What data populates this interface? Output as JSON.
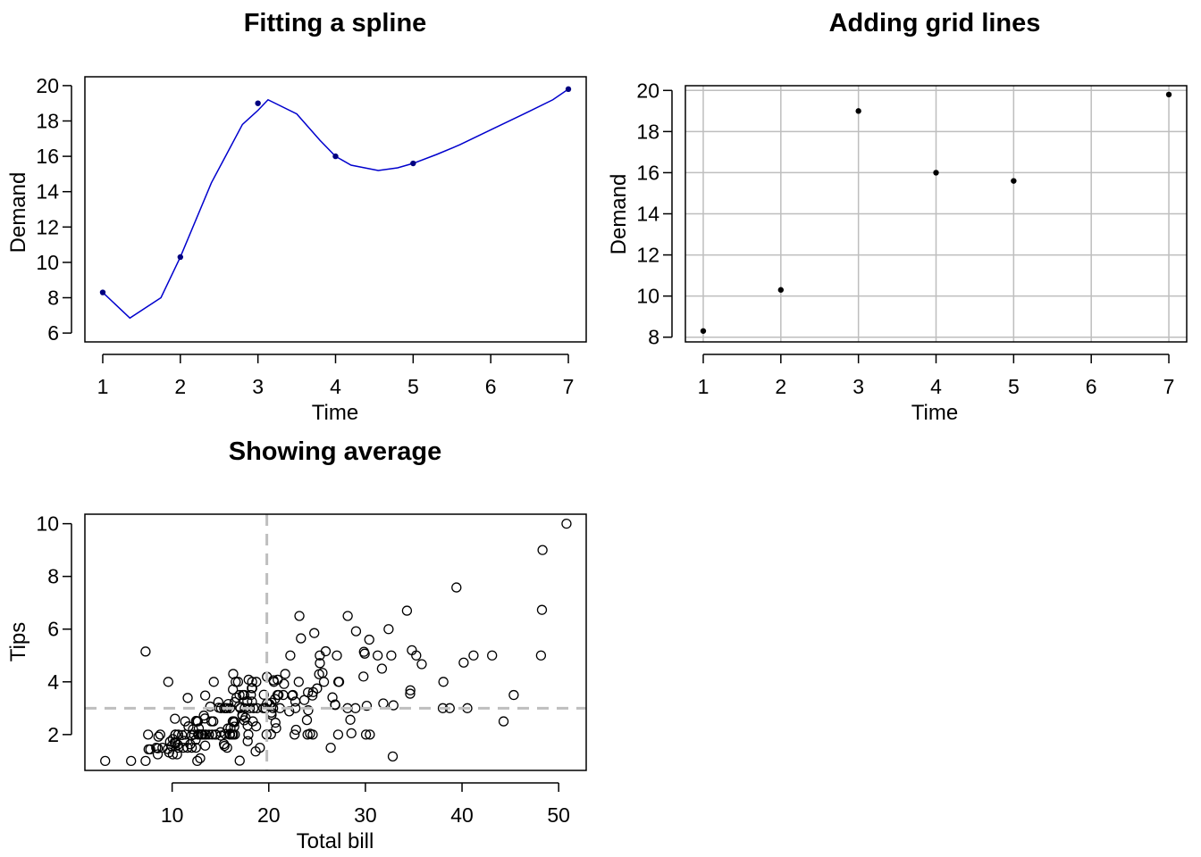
{
  "chart_data": [
    {
      "type": "line",
      "title": "Fitting a spline",
      "xlabel": "Time",
      "ylabel": "Demand",
      "xlim": [
        0.77,
        7.23
      ],
      "ylim": [
        5.5,
        20.5
      ],
      "xticks": [
        1,
        2,
        3,
        4,
        5,
        6,
        7
      ],
      "yticks": [
        6,
        8,
        10,
        12,
        14,
        16,
        18,
        20
      ],
      "grid": false,
      "colors": {
        "spline": "#0000cd",
        "points": "#000080"
      },
      "series": [
        {
          "kind": "points",
          "x": [
            1,
            2,
            3,
            4,
            5,
            7
          ],
          "y": [
            8.3,
            10.3,
            19.0,
            16.0,
            15.6,
            19.8
          ]
        },
        {
          "kind": "spline",
          "x": [
            1,
            1.35,
            1.75,
            2.0,
            2.4,
            2.8,
            3.0,
            3.13,
            3.5,
            3.8,
            4.0,
            4.2,
            4.55,
            4.8,
            5.0,
            5.3,
            5.6,
            6.0,
            6.5,
            6.8,
            7.0
          ],
          "y": [
            8.3,
            6.85,
            8.0,
            10.3,
            14.5,
            17.8,
            18.6,
            19.2,
            18.4,
            16.9,
            16.0,
            15.5,
            15.2,
            15.35,
            15.6,
            16.1,
            16.65,
            17.5,
            18.55,
            19.2,
            19.8
          ]
        }
      ]
    },
    {
      "type": "scatter",
      "title": "Adding grid lines",
      "xlabel": "Time",
      "ylabel": "Demand",
      "xlim": [
        0.77,
        7.23
      ],
      "ylim": [
        7.77,
        20.23
      ],
      "xticks": [
        1,
        2,
        3,
        4,
        5,
        6,
        7
      ],
      "yticks": [
        8,
        10,
        12,
        14,
        16,
        18,
        20
      ],
      "grid": true,
      "colors": {
        "grid": "#bebebe",
        "points": "#000000"
      },
      "series": [
        {
          "kind": "points",
          "x": [
            1,
            2,
            3,
            4,
            5,
            7
          ],
          "y": [
            8.3,
            10.3,
            19.0,
            16.0,
            15.6,
            19.8
          ]
        }
      ]
    },
    {
      "type": "scatter",
      "title": "Showing average",
      "xlabel": "Total bill",
      "ylabel": "Tips",
      "xlim": [
        0.97,
        52.85
      ],
      "ylim": [
        0.64,
        10.36
      ],
      "xticks": [
        10,
        20,
        30,
        40,
        50
      ],
      "yticks": [
        2,
        4,
        6,
        8,
        10
      ],
      "grid": false,
      "reference_lines": {
        "mean_x": 19.8,
        "mean_y": 3.0
      },
      "colors": {
        "reference": "#bebebe",
        "points": "#000000"
      },
      "points": [
        [
          3.07,
          1.0
        ],
        [
          5.75,
          1.0
        ],
        [
          7.25,
          1.0
        ],
        [
          7.25,
          5.15
        ],
        [
          7.51,
          2.0
        ],
        [
          7.56,
          1.44
        ],
        [
          7.74,
          1.44
        ],
        [
          8.35,
          1.5
        ],
        [
          8.51,
          1.25
        ],
        [
          8.52,
          1.48
        ],
        [
          8.58,
          1.92
        ],
        [
          8.77,
          2.0
        ],
        [
          9.0,
          1.5
        ],
        [
          9.55,
          1.45
        ],
        [
          9.6,
          4.0
        ],
        [
          9.68,
          1.32
        ],
        [
          9.78,
          1.73
        ],
        [
          9.94,
          1.56
        ],
        [
          10.07,
          1.25
        ],
        [
          10.07,
          1.83
        ],
        [
          10.27,
          1.71
        ],
        [
          10.29,
          2.6
        ],
        [
          10.33,
          1.67
        ],
        [
          10.33,
          2.0
        ],
        [
          10.34,
          1.66
        ],
        [
          10.34,
          2.0
        ],
        [
          10.51,
          1.25
        ],
        [
          10.59,
          1.61
        ],
        [
          10.63,
          2.0
        ],
        [
          10.65,
          1.5
        ],
        [
          11.02,
          1.98
        ],
        [
          11.17,
          1.5
        ],
        [
          11.24,
          1.76
        ],
        [
          11.35,
          2.5
        ],
        [
          11.38,
          2.0
        ],
        [
          11.59,
          1.5
        ],
        [
          11.61,
          3.39
        ],
        [
          11.69,
          2.31
        ],
        [
          11.87,
          1.63
        ],
        [
          12.02,
          1.97
        ],
        [
          12.03,
          1.5
        ],
        [
          12.16,
          2.2
        ],
        [
          12.26,
          2.0
        ],
        [
          12.43,
          1.8
        ],
        [
          12.46,
          1.5
        ],
        [
          12.48,
          2.52
        ],
        [
          12.54,
          2.5
        ],
        [
          12.6,
          1.0
        ],
        [
          12.66,
          2.5
        ],
        [
          12.69,
          2.0
        ],
        [
          12.74,
          2.01
        ],
        [
          12.76,
          2.23
        ],
        [
          12.9,
          1.1
        ],
        [
          13.0,
          2.0
        ],
        [
          13.03,
          2.0
        ],
        [
          13.13,
          2.0
        ],
        [
          13.16,
          2.0
        ],
        [
          13.28,
          2.72
        ],
        [
          13.37,
          2.0
        ],
        [
          13.39,
          2.61
        ],
        [
          13.42,
          1.58
        ],
        [
          13.42,
          3.48
        ],
        [
          13.51,
          2.0
        ],
        [
          13.81,
          2.0
        ],
        [
          13.94,
          3.06
        ],
        [
          14.07,
          2.5
        ],
        [
          14.15,
          2.0
        ],
        [
          14.26,
          2.5
        ],
        [
          14.31,
          4.0
        ],
        [
          14.48,
          2.0
        ],
        [
          14.52,
          2.0
        ],
        [
          14.78,
          3.23
        ],
        [
          14.83,
          3.02
        ],
        [
          15.01,
          2.09
        ],
        [
          15.04,
          1.96
        ],
        [
          15.06,
          3.0
        ],
        [
          15.36,
          1.64
        ],
        [
          15.38,
          3.0
        ],
        [
          15.42,
          1.57
        ],
        [
          15.48,
          2.02
        ],
        [
          15.53,
          3.0
        ],
        [
          15.69,
          1.5
        ],
        [
          15.69,
          3.0
        ],
        [
          15.77,
          2.23
        ],
        [
          15.81,
          3.16
        ],
        [
          15.95,
          2.0
        ],
        [
          15.98,
          2.03
        ],
        [
          15.98,
          3.0
        ],
        [
          16.0,
          2.0
        ],
        [
          16.04,
          2.24
        ],
        [
          16.21,
          2.0
        ],
        [
          16.27,
          2.5
        ],
        [
          16.29,
          3.71
        ],
        [
          16.31,
          2.0
        ],
        [
          16.32,
          4.3
        ],
        [
          16.4,
          2.5
        ],
        [
          16.43,
          2.3
        ],
        [
          16.45,
          2.47
        ],
        [
          16.47,
          3.23
        ],
        [
          16.49,
          2.0
        ],
        [
          16.58,
          4.0
        ],
        [
          16.66,
          3.4
        ],
        [
          16.82,
          4.0
        ],
        [
          16.93,
          3.07
        ],
        [
          16.97,
          3.5
        ],
        [
          16.99,
          1.01
        ],
        [
          17.07,
          3.0
        ],
        [
          17.26,
          2.74
        ],
        [
          17.29,
          2.71
        ],
        [
          17.31,
          3.5
        ],
        [
          17.46,
          2.54
        ],
        [
          17.47,
          3.5
        ],
        [
          17.51,
          3.0
        ],
        [
          17.59,
          2.64
        ],
        [
          17.78,
          3.27
        ],
        [
          17.81,
          2.34
        ],
        [
          17.82,
          1.75
        ],
        [
          17.89,
          2.0
        ],
        [
          17.92,
          4.08
        ],
        [
          18.04,
          3.0
        ],
        [
          18.15,
          3.5
        ],
        [
          18.24,
          3.76
        ],
        [
          18.26,
          3.25
        ],
        [
          18.28,
          4.0
        ],
        [
          18.29,
          3.76
        ],
        [
          18.35,
          2.5
        ],
        [
          18.43,
          3.0
        ],
        [
          18.64,
          1.36
        ],
        [
          18.69,
          2.31
        ],
        [
          18.71,
          4.0
        ],
        [
          18.78,
          3.0
        ],
        [
          19.08,
          1.5
        ],
        [
          19.44,
          3.0
        ],
        [
          19.49,
          3.51
        ],
        [
          19.65,
          3.0
        ],
        [
          19.77,
          2.0
        ],
        [
          19.81,
          4.19
        ],
        [
          19.82,
          3.18
        ],
        [
          20.08,
          3.15
        ],
        [
          20.23,
          2.01
        ],
        [
          20.27,
          2.83
        ],
        [
          20.29,
          2.75
        ],
        [
          20.29,
          3.21
        ],
        [
          20.45,
          3.0
        ],
        [
          20.49,
          4.06
        ],
        [
          20.53,
          4.0
        ],
        [
          20.65,
          3.35
        ],
        [
          20.69,
          2.45
        ],
        [
          20.76,
          2.24
        ],
        [
          20.9,
          3.5
        ],
        [
          20.92,
          4.08
        ],
        [
          21.01,
          3.5
        ],
        [
          21.16,
          3.0
        ],
        [
          21.5,
          3.5
        ],
        [
          21.58,
          3.92
        ],
        [
          21.7,
          4.3
        ],
        [
          22.12,
          2.88
        ],
        [
          22.23,
          5.0
        ],
        [
          22.42,
          3.48
        ],
        [
          22.49,
          3.5
        ],
        [
          22.67,
          2.0
        ],
        [
          22.75,
          3.25
        ],
        [
          22.76,
          3.0
        ],
        [
          22.82,
          2.18
        ],
        [
          23.1,
          4.0
        ],
        [
          23.17,
          6.5
        ],
        [
          23.33,
          5.65
        ],
        [
          23.68,
          3.31
        ],
        [
          23.95,
          2.55
        ],
        [
          24.01,
          2.0
        ],
        [
          24.06,
          3.6
        ],
        [
          24.08,
          2.92
        ],
        [
          24.27,
          2.03
        ],
        [
          24.52,
          3.48
        ],
        [
          24.55,
          2.0
        ],
        [
          24.59,
          3.61
        ],
        [
          24.71,
          5.85
        ],
        [
          25.0,
          3.75
        ],
        [
          25.21,
          4.29
        ],
        [
          25.28,
          5.0
        ],
        [
          25.29,
          4.71
        ],
        [
          25.56,
          4.34
        ],
        [
          25.71,
          4.0
        ],
        [
          25.89,
          5.16
        ],
        [
          26.41,
          1.5
        ],
        [
          26.59,
          3.41
        ],
        [
          26.86,
          3.14
        ],
        [
          26.88,
          3.12
        ],
        [
          27.05,
          5.0
        ],
        [
          27.18,
          2.0
        ],
        [
          27.2,
          4.0
        ],
        [
          27.28,
          4.0
        ],
        [
          28.15,
          3.0
        ],
        [
          28.17,
          6.5
        ],
        [
          28.44,
          2.56
        ],
        [
          28.55,
          2.05
        ],
        [
          28.97,
          3.0
        ],
        [
          29.03,
          5.92
        ],
        [
          29.8,
          4.2
        ],
        [
          29.85,
          5.14
        ],
        [
          29.93,
          5.07
        ],
        [
          30.06,
          2.0
        ],
        [
          30.14,
          3.09
        ],
        [
          30.4,
          5.6
        ],
        [
          30.46,
          2.0
        ],
        [
          31.27,
          5.0
        ],
        [
          31.71,
          4.5
        ],
        [
          31.85,
          3.18
        ],
        [
          32.4,
          6.0
        ],
        [
          32.68,
          5.0
        ],
        [
          32.83,
          1.17
        ],
        [
          32.9,
          3.11
        ],
        [
          34.3,
          6.7
        ],
        [
          34.63,
          3.55
        ],
        [
          34.65,
          3.68
        ],
        [
          34.81,
          5.2
        ],
        [
          35.26,
          5.0
        ],
        [
          35.83,
          4.67
        ],
        [
          38.01,
          3.0
        ],
        [
          38.07,
          4.0
        ],
        [
          38.73,
          3.0
        ],
        [
          39.42,
          7.58
        ],
        [
          40.17,
          4.73
        ],
        [
          40.55,
          3.0
        ],
        [
          41.19,
          5.0
        ],
        [
          43.11,
          5.0
        ],
        [
          44.3,
          2.5
        ],
        [
          45.35,
          3.5
        ],
        [
          48.17,
          5.0
        ],
        [
          48.27,
          6.73
        ],
        [
          48.33,
          9.0
        ],
        [
          50.81,
          10.0
        ]
      ]
    }
  ]
}
